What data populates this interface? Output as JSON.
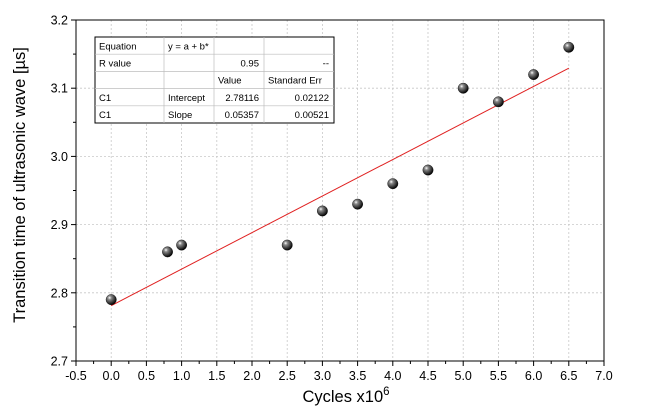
{
  "chart_data": {
    "type": "scatter",
    "xlabel": "Cycles x10",
    "xlabel_sup": "6",
    "ylabel": "Transition time of ultrasonic wave [µs]",
    "xlim": [
      -0.5,
      7.0
    ],
    "ylim": [
      2.7,
      3.2
    ],
    "xticks": [
      "-0.5",
      "0.0",
      "0.5",
      "1.0",
      "1.5",
      "2.0",
      "2.5",
      "3.0",
      "3.5",
      "4.0",
      "4.5",
      "5.0",
      "5.5",
      "6.0",
      "6.5",
      "7.0"
    ],
    "yticks": [
      "2.7",
      "2.8",
      "2.9",
      "3.0",
      "3.1",
      "3.2"
    ],
    "grid": true,
    "marker_color": "#000000",
    "fit_color": "#e02020",
    "points": [
      {
        "x": 0.0,
        "y": 2.79
      },
      {
        "x": 0.8,
        "y": 2.86
      },
      {
        "x": 1.0,
        "y": 2.87
      },
      {
        "x": 2.5,
        "y": 2.87
      },
      {
        "x": 3.0,
        "y": 2.92
      },
      {
        "x": 3.5,
        "y": 2.93
      },
      {
        "x": 4.0,
        "y": 2.96
      },
      {
        "x": 4.5,
        "y": 2.98
      },
      {
        "x": 5.0,
        "y": 3.1
      },
      {
        "x": 5.5,
        "y": 3.08
      },
      {
        "x": 6.0,
        "y": 3.12
      },
      {
        "x": 6.5,
        "y": 3.16
      }
    ],
    "fit": {
      "x_range": [
        0.0,
        6.5
      ],
      "intercept": 2.78116,
      "slope": 0.05357
    },
    "stats_table": {
      "rows": [
        [
          "Equation",
          "y = a + b*",
          "",
          ""
        ],
        [
          "R value",
          "",
          "0.95",
          "--"
        ],
        [
          "",
          "",
          "Value",
          "Standard Err"
        ],
        [
          "C1",
          "Intercept",
          "2.78116",
          "0.02122"
        ],
        [
          "C1",
          "Slope",
          "0.05357",
          "0.00521"
        ]
      ]
    }
  }
}
